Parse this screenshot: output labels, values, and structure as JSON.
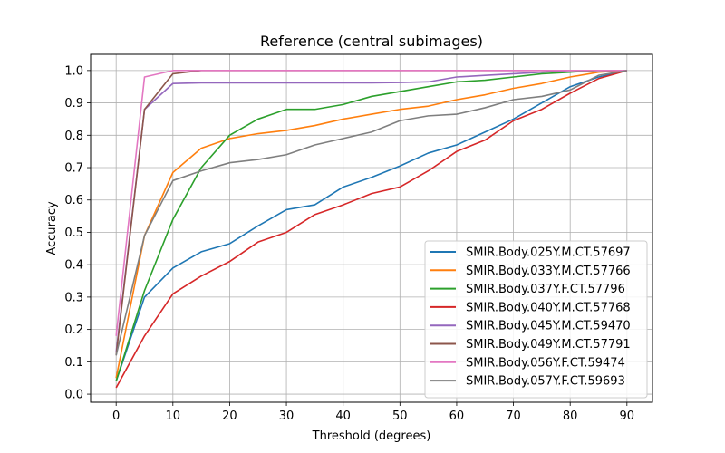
{
  "chart_data": {
    "type": "line",
    "title": "Reference (central subimages)",
    "xlabel": "Threshold (degrees)",
    "ylabel": "Accuracy",
    "xlim": [
      -4.5,
      94.5
    ],
    "ylim": [
      -0.025,
      1.05
    ],
    "xticks": [
      0,
      10,
      20,
      30,
      40,
      50,
      60,
      70,
      80,
      90
    ],
    "yticks": [
      0.0,
      0.1,
      0.2,
      0.3,
      0.4,
      0.5,
      0.6,
      0.7,
      0.8,
      0.9,
      1.0
    ],
    "ytick_labels": [
      "0.0",
      "0.1",
      "0.2",
      "0.3",
      "0.4",
      "0.5",
      "0.6",
      "0.7",
      "0.8",
      "0.9",
      "1.0"
    ],
    "grid": true,
    "legend_position": "lower-right",
    "x": [
      0,
      5,
      10,
      15,
      20,
      25,
      30,
      35,
      40,
      45,
      50,
      55,
      60,
      65,
      70,
      75,
      80,
      85,
      90
    ],
    "series": [
      {
        "name": "SMIR.Body.025Y.M.CT.57697",
        "color": "#1f77b4",
        "values": [
          0.04,
          0.3,
          0.39,
          0.44,
          0.465,
          0.52,
          0.57,
          0.585,
          0.64,
          0.67,
          0.705,
          0.745,
          0.77,
          0.81,
          0.85,
          0.9,
          0.95,
          0.98,
          1.0
        ]
      },
      {
        "name": "SMIR.Body.033Y.M.CT.57766",
        "color": "#ff7f0e",
        "values": [
          0.05,
          0.49,
          0.685,
          0.76,
          0.79,
          0.805,
          0.815,
          0.83,
          0.85,
          0.865,
          0.88,
          0.89,
          0.91,
          0.925,
          0.945,
          0.96,
          0.98,
          0.995,
          1.0
        ]
      },
      {
        "name": "SMIR.Body.037Y.F.CT.57796",
        "color": "#2ca02c",
        "values": [
          0.04,
          0.32,
          0.54,
          0.7,
          0.8,
          0.85,
          0.88,
          0.88,
          0.895,
          0.92,
          0.935,
          0.95,
          0.965,
          0.97,
          0.98,
          0.99,
          0.995,
          1.0,
          1.0
        ]
      },
      {
        "name": "SMIR.Body.040Y.M.CT.57768",
        "color": "#d62728",
        "values": [
          0.02,
          0.18,
          0.31,
          0.365,
          0.41,
          0.47,
          0.5,
          0.555,
          0.585,
          0.62,
          0.64,
          0.69,
          0.75,
          0.785,
          0.845,
          0.88,
          0.93,
          0.975,
          1.0
        ]
      },
      {
        "name": "SMIR.Body.045Y.M.CT.59470",
        "color": "#9467bd",
        "values": [
          0.13,
          0.88,
          0.96,
          0.962,
          0.962,
          0.962,
          0.962,
          0.962,
          0.962,
          0.962,
          0.963,
          0.965,
          0.98,
          0.985,
          0.99,
          0.995,
          1.0,
          1.0,
          1.0
        ]
      },
      {
        "name": "SMIR.Body.049Y.M.CT.57791",
        "color": "#8c564b",
        "values": [
          0.12,
          0.88,
          0.99,
          1.0,
          1.0,
          1.0,
          1.0,
          1.0,
          1.0,
          1.0,
          1.0,
          1.0,
          1.0,
          1.0,
          1.0,
          1.0,
          1.0,
          1.0,
          1.0
        ]
      },
      {
        "name": "SMIR.Body.056Y.F.CT.59474",
        "color": "#e377c2",
        "values": [
          0.18,
          0.98,
          1.0,
          1.0,
          1.0,
          1.0,
          1.0,
          1.0,
          1.0,
          1.0,
          1.0,
          1.0,
          1.0,
          1.0,
          1.0,
          1.0,
          1.0,
          1.0,
          1.0
        ]
      },
      {
        "name": "SMIR.Body.057Y.F.CT.59693",
        "color": "#7f7f7f",
        "values": [
          0.12,
          0.49,
          0.66,
          0.69,
          0.715,
          0.725,
          0.74,
          0.77,
          0.79,
          0.81,
          0.845,
          0.86,
          0.865,
          0.885,
          0.91,
          0.92,
          0.94,
          0.985,
          1.0
        ]
      }
    ]
  }
}
